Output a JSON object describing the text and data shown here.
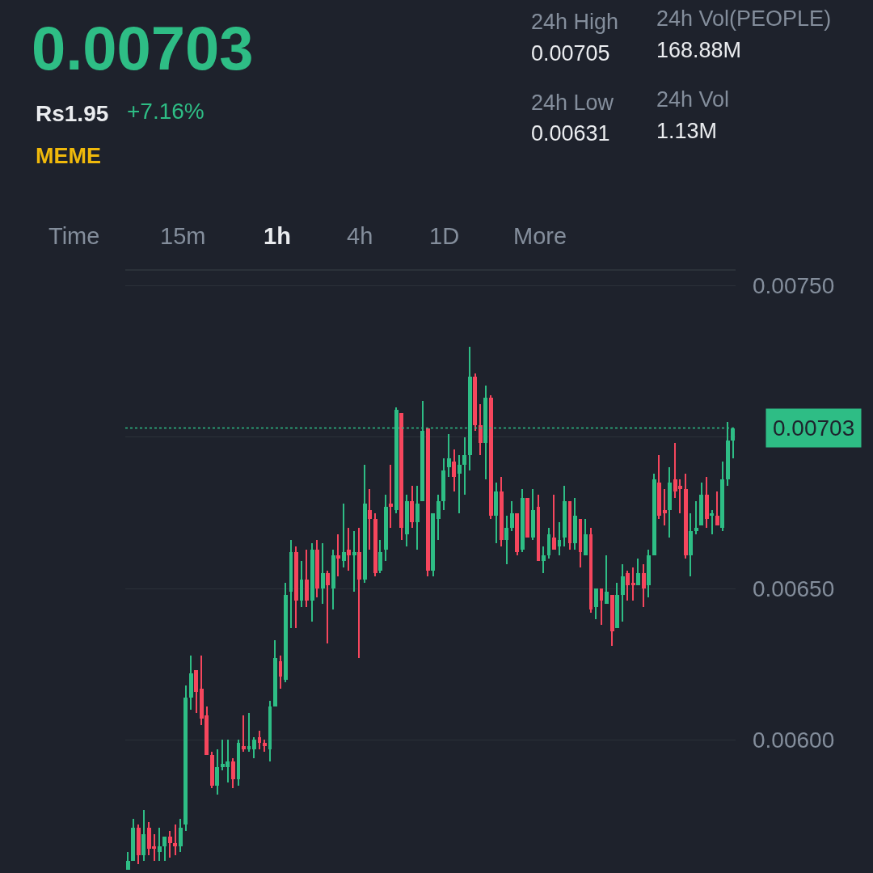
{
  "chart_data": {
    "type": "candlestick",
    "title": "0.00703",
    "annotations": [
      "Rs1.95",
      "+7.16%",
      "MEME",
      "24h High",
      "0.00705",
      "24h Low",
      "0.00631",
      "24h Vol(PEOPLE)",
      "168.88M",
      "24h Vol",
      "1.13M",
      "Time",
      "15m",
      "1h",
      "4h",
      "1D",
      "More"
    ],
    "categories": [
      null,
      null,
      null,
      null,
      null,
      null,
      null,
      null,
      null,
      null,
      null,
      null,
      null,
      null,
      null,
      null,
      null,
      null,
      null,
      null,
      null,
      null,
      null,
      null,
      null,
      null,
      null,
      null,
      null,
      null,
      null,
      null,
      null,
      null,
      null,
      null,
      null,
      null,
      null,
      null,
      null,
      null,
      null,
      null,
      null,
      null,
      null,
      null,
      null,
      null,
      null,
      null,
      null,
      null,
      null,
      null,
      null,
      null,
      null,
      null,
      null,
      null,
      null,
      null,
      null,
      null,
      null,
      null,
      null,
      null,
      null,
      null,
      null,
      null,
      null,
      null,
      null,
      null,
      null,
      null,
      null,
      null,
      null,
      null,
      null,
      null,
      null,
      null,
      null,
      null,
      null,
      null,
      null,
      null,
      null,
      null,
      null,
      null,
      null,
      null,
      null,
      null,
      null,
      null,
      null,
      null,
      null,
      null,
      null,
      null,
      null,
      null,
      null,
      null,
      null,
      null
    ],
    "ohlc": [
      [
        0.00557,
        0.00563,
        0.00557,
        0.0056
      ],
      [
        0.0056,
        0.00574,
        0.0056,
        0.00571
      ],
      [
        0.00571,
        0.00572,
        0.00559,
        0.00562
      ],
      [
        0.00562,
        0.00577,
        0.0056,
        0.00569
      ],
      [
        0.00571,
        0.00573,
        0.00562,
        0.00564
      ],
      [
        0.00565,
        0.00569,
        0.0056,
        0.00564
      ],
      [
        0.00563,
        0.00571,
        0.0056,
        0.00565
      ],
      [
        0.00565,
        0.00568,
        0.0056,
        0.00568
      ],
      [
        0.00568,
        0.0057,
        0.00561,
        0.00566
      ],
      [
        0.00566,
        0.00572,
        0.00562,
        0.00565
      ],
      [
        0.00565,
        0.00574,
        0.00563,
        0.00571
      ],
      [
        0.00572,
        0.00618,
        0.0057,
        0.00614
      ],
      [
        0.00614,
        0.00628,
        0.0061,
        0.00622
      ],
      [
        0.00623,
        0.00623,
        0.00609,
        0.00616
      ],
      [
        0.00617,
        0.00628,
        0.00605,
        0.00607
      ],
      [
        0.00608,
        0.00611,
        0.00595,
        0.00595
      ],
      [
        0.00595,
        0.00596,
        0.00584,
        0.00585
      ],
      [
        0.00585,
        0.00597,
        0.00582,
        0.00591
      ],
      [
        0.00591,
        0.006,
        0.0059,
        0.00592
      ],
      [
        0.00591,
        0.006,
        0.00586,
        0.00593
      ],
      [
        0.00593,
        0.00594,
        0.00584,
        0.00587
      ],
      [
        0.00587,
        0.006,
        0.00585,
        0.00599
      ],
      [
        0.00598,
        0.00608,
        0.00596,
        0.00597
      ],
      [
        0.00597,
        0.00609,
        0.00596,
        0.00598
      ],
      [
        0.00597,
        0.00601,
        0.00594,
        0.006
      ],
      [
        0.00601,
        0.00603,
        0.00597,
        0.00599
      ],
      [
        0.00599,
        0.006,
        0.00596,
        0.00598
      ],
      [
        0.00597,
        0.00613,
        0.00593,
        0.00611
      ],
      [
        0.00611,
        0.00633,
        0.00611,
        0.00627
      ],
      [
        0.00626,
        0.00628,
        0.00617,
        0.00621
      ],
      [
        0.0062,
        0.00652,
        0.00619,
        0.00648
      ],
      [
        0.00649,
        0.00666,
        0.00637,
        0.00662
      ],
      [
        0.00662,
        0.00664,
        0.00637,
        0.00646
      ],
      [
        0.00646,
        0.00659,
        0.00644,
        0.00653
      ],
      [
        0.00653,
        0.00663,
        0.00644,
        0.00646
      ],
      [
        0.00646,
        0.00665,
        0.00639,
        0.00663
      ],
      [
        0.00663,
        0.00666,
        0.00647,
        0.0065
      ],
      [
        0.0065,
        0.00665,
        0.00645,
        0.00655
      ],
      [
        0.00655,
        0.00656,
        0.00632,
        0.00651
      ],
      [
        0.0065,
        0.00663,
        0.00643,
        0.00661
      ],
      [
        0.00661,
        0.00668,
        0.00654,
        0.0066
      ],
      [
        0.00659,
        0.00678,
        0.00657,
        0.00662
      ],
      [
        0.00663,
        0.0067,
        0.00656,
        0.00661
      ],
      [
        0.00661,
        0.00669,
        0.00649,
        0.00662
      ],
      [
        0.00662,
        0.0067,
        0.00627,
        0.00653
      ],
      [
        0.00653,
        0.00691,
        0.00652,
        0.00678
      ],
      [
        0.00676,
        0.00683,
        0.00663,
        0.00673
      ],
      [
        0.00673,
        0.00675,
        0.00654,
        0.00655
      ],
      [
        0.00656,
        0.00666,
        0.00655,
        0.00662
      ],
      [
        0.00663,
        0.00681,
        0.00659,
        0.00677
      ],
      [
        0.00678,
        0.00691,
        0.0067,
        0.00677
      ],
      [
        0.00676,
        0.0071,
        0.00675,
        0.00709
      ],
      [
        0.00708,
        0.00708,
        0.00666,
        0.0067
      ],
      [
        0.00668,
        0.00681,
        0.00664,
        0.00679
      ],
      [
        0.00679,
        0.00684,
        0.0067,
        0.00672
      ],
      [
        0.00672,
        0.00684,
        0.00663,
        0.00678
      ],
      [
        0.00679,
        0.00712,
        0.00679,
        0.00702
      ],
      [
        0.00703,
        0.00703,
        0.00654,
        0.00656
      ],
      [
        0.00656,
        0.00675,
        0.00654,
        0.00675
      ],
      [
        0.00673,
        0.00681,
        0.00666,
        0.00679
      ],
      [
        0.00679,
        0.00693,
        0.00676,
        0.00689
      ],
      [
        0.0069,
        0.00701,
        0.00687,
        0.00693
      ],
      [
        0.00692,
        0.00696,
        0.00682,
        0.00687
      ],
      [
        0.00688,
        0.00694,
        0.00675,
        0.00691
      ],
      [
        0.00691,
        0.007,
        0.00681,
        0.00694
      ],
      [
        0.00694,
        0.0073,
        0.00689,
        0.0072
      ],
      [
        0.0072,
        0.00721,
        0.00702,
        0.00704
      ],
      [
        0.00704,
        0.00711,
        0.00694,
        0.00698
      ],
      [
        0.00698,
        0.00717,
        0.00686,
        0.00713
      ],
      [
        0.00713,
        0.00714,
        0.00673,
        0.00674
      ],
      [
        0.00674,
        0.00685,
        0.00665,
        0.00682
      ],
      [
        0.00682,
        0.00687,
        0.00664,
        0.00666
      ],
      [
        0.00666,
        0.00674,
        0.00658,
        0.0067
      ],
      [
        0.0067,
        0.00679,
        0.00669,
        0.00675
      ],
      [
        0.00675,
        0.00675,
        0.00661,
        0.00662
      ],
      [
        0.00663,
        0.00683,
        0.00662,
        0.0068
      ],
      [
        0.0068,
        0.0068,
        0.00667,
        0.00667
      ],
      [
        0.00667,
        0.00683,
        0.00666,
        0.00676
      ],
      [
        0.00677,
        0.00681,
        0.00659,
        0.00659
      ],
      [
        0.00659,
        0.00664,
        0.00655,
        0.00661
      ],
      [
        0.00661,
        0.0067,
        0.0066,
        0.00668
      ],
      [
        0.00667,
        0.00681,
        0.00663,
        0.00663
      ],
      [
        0.00664,
        0.00672,
        0.00661,
        0.00666
      ],
      [
        0.00667,
        0.00684,
        0.00664,
        0.00679
      ],
      [
        0.00679,
        0.00679,
        0.00663,
        0.00665
      ],
      [
        0.00665,
        0.0068,
        0.00663,
        0.00674
      ],
      [
        0.00673,
        0.00673,
        0.00657,
        0.00662
      ],
      [
        0.00661,
        0.00673,
        0.00661,
        0.00668
      ],
      [
        0.00668,
        0.0067,
        0.00642,
        0.00643
      ],
      [
        0.00644,
        0.0065,
        0.0064,
        0.0065
      ],
      [
        0.0065,
        0.0065,
        0.00638,
        0.00646
      ],
      [
        0.00645,
        0.00661,
        0.00645,
        0.00649
      ],
      [
        0.00648,
        0.00648,
        0.00631,
        0.00636
      ],
      [
        0.00637,
        0.00652,
        0.00637,
        0.00648
      ],
      [
        0.00648,
        0.00658,
        0.00639,
        0.00654
      ],
      [
        0.00655,
        0.00656,
        0.00646,
        0.00651
      ],
      [
        0.00652,
        0.00657,
        0.00646,
        0.00651
      ],
      [
        0.00651,
        0.0066,
        0.00651,
        0.00655
      ],
      [
        0.00655,
        0.00658,
        0.00644,
        0.0065
      ],
      [
        0.00651,
        0.00663,
        0.00647,
        0.00661
      ],
      [
        0.00661,
        0.00688,
        0.00661,
        0.00686
      ],
      [
        0.00685,
        0.00694,
        0.00673,
        0.00674
      ],
      [
        0.00676,
        0.00683,
        0.00671,
        0.00675
      ],
      [
        0.00676,
        0.0069,
        0.00667,
        0.00685
      ],
      [
        0.00686,
        0.00698,
        0.0068,
        0.00682
      ],
      [
        0.00684,
        0.00686,
        0.00675,
        0.00683
      ],
      [
        0.00683,
        0.00688,
        0.0066,
        0.00661
      ],
      [
        0.00661,
        0.00675,
        0.00654,
        0.00669
      ],
      [
        0.00669,
        0.00679,
        0.00668,
        0.0067
      ],
      [
        0.00671,
        0.00685,
        0.00671,
        0.00681
      ],
      [
        0.00681,
        0.00687,
        0.0067,
        0.00673
      ],
      [
        0.00674,
        0.00676,
        0.00668,
        0.00675
      ],
      [
        0.00674,
        0.00682,
        0.00671,
        0.00671
      ],
      [
        0.0067,
        0.00692,
        0.00669,
        0.00686
      ],
      [
        0.00686,
        0.00705,
        0.00684,
        0.00699
      ],
      [
        0.00699,
        0.00703,
        0.00693,
        0.00703
      ]
    ],
    "ylim": [
      0.00556,
      0.00755
    ],
    "yticks": [
      {
        "value": 0.0075,
        "label": "0.00750"
      },
      {
        "value": 0.007,
        "label": null
      },
      {
        "value": 0.0065,
        "label": "0.00650"
      },
      {
        "value": 0.006,
        "label": "0.00600"
      }
    ],
    "ref_lines": [
      {
        "axis": "y",
        "value": 0.00703,
        "label": "0.00703",
        "color": "#2ebd85",
        "line_style": "dotted"
      }
    ],
    "grid": "y",
    "tick_labels": "y"
  }
}
